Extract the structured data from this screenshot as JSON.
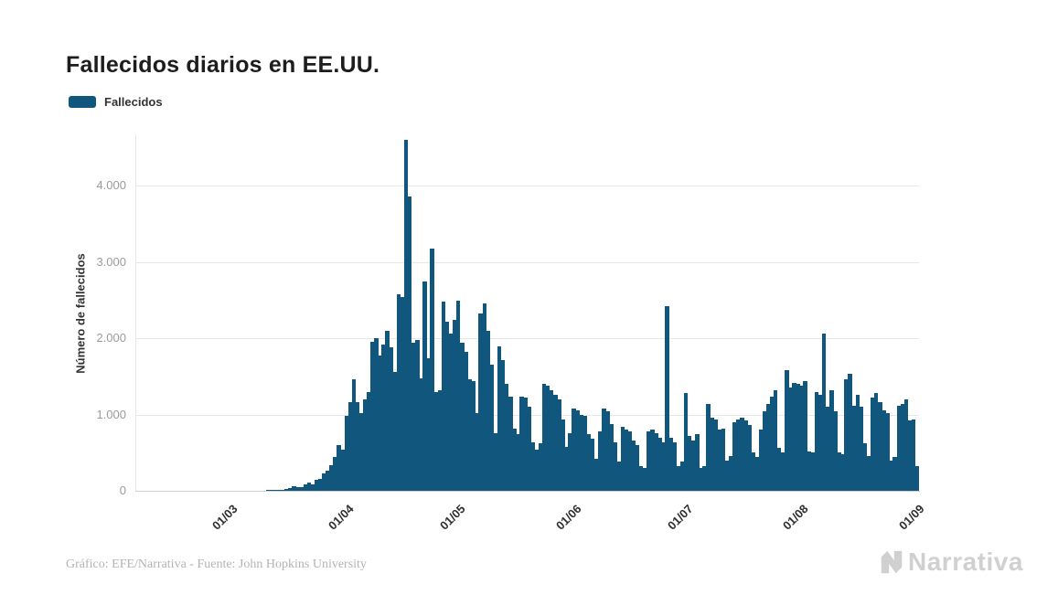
{
  "title": "Fallecidos diarios en EE.UU.",
  "legend": {
    "label": "Fallecidos",
    "color": "#11567D"
  },
  "y_axis": {
    "title": "Número de fallecidos",
    "ticks": [
      {
        "value": 0,
        "label": "0"
      },
      {
        "value": 1000,
        "label": "1.000"
      },
      {
        "value": 2000,
        "label": "2.000"
      },
      {
        "value": 3000,
        "label": "3.000"
      },
      {
        "value": 4000,
        "label": "4.000"
      }
    ]
  },
  "x_axis": {
    "ticks": [
      {
        "label": "01/03",
        "day_index": 25
      },
      {
        "label": "01/04",
        "day_index": 56
      },
      {
        "label": "01/05",
        "day_index": 86
      },
      {
        "label": "01/06",
        "day_index": 117
      },
      {
        "label": "01/07",
        "day_index": 147
      },
      {
        "label": "01/08",
        "day_index": 178
      },
      {
        "label": "01/09",
        "day_index": 209
      }
    ]
  },
  "footer": {
    "credit": "Gráfico: EFE/Narrativa - Fuente: John Hopkins University",
    "brand": "Narrativa"
  },
  "chart_data": {
    "type": "bar",
    "title": "Fallecidos diarios en EE.UU.",
    "series_name": "Fallecidos",
    "x_start": "05/02 (dd/mm), one bar per day",
    "x_end": "01/09",
    "ylabel": "Número de fallecidos",
    "ylim": [
      0,
      4600
    ],
    "grid": "horizontal",
    "legend_position": "top-left",
    "bar_color": "#11567D",
    "values": [
      0,
      0,
      0,
      0,
      0,
      0,
      0,
      0,
      0,
      1,
      1,
      1,
      1,
      1,
      1,
      1,
      1,
      1,
      2,
      2,
      2,
      2,
      2,
      3,
      4,
      3,
      4,
      4,
      3,
      4,
      5,
      4,
      5,
      6,
      5,
      8,
      7,
      11,
      16,
      18,
      23,
      41,
      57,
      49,
      46,
      80,
      111,
      90,
      145,
      160,
      227,
      267,
      330,
      440,
      600,
      540,
      980,
      1160,
      1460,
      1160,
      1020,
      1200,
      1300,
      1960,
      2000,
      1780,
      1920,
      2100,
      1880,
      1560,
      2580,
      2540,
      4600,
      3860,
      1940,
      1980,
      1480,
      2740,
      1740,
      3180,
      1300,
      1320,
      2480,
      2220,
      2060,
      2240,
      2500,
      1940,
      1820,
      1460,
      1440,
      1020,
      2330,
      2460,
      2100,
      1660,
      760,
      1900,
      1720,
      1400,
      1240,
      820,
      740,
      1240,
      1220,
      1100,
      640,
      540,
      620,
      1400,
      1380,
      1320,
      1260,
      1200,
      940,
      580,
      760,
      1080,
      1060,
      1000,
      980,
      740,
      680,
      420,
      780,
      1080,
      1040,
      880,
      640,
      380,
      840,
      800,
      780,
      660,
      600,
      320,
      300,
      780,
      800,
      760,
      700,
      640,
      2420,
      700,
      640,
      320,
      380,
      1280,
      720,
      660,
      740,
      300,
      320,
      1140,
      960,
      940,
      800,
      810,
      400,
      460,
      900,
      940,
      960,
      920,
      860,
      500,
      440,
      800,
      1040,
      1140,
      1240,
      1320,
      560,
      500,
      1580,
      1360,
      1420,
      1400,
      1380,
      1440,
      520,
      500,
      1300,
      1260,
      2060,
      1100,
      1320,
      1040,
      500,
      480,
      1460,
      1540,
      1120,
      1260,
      1100,
      620,
      460,
      1220,
      1280,
      1160,
      1050,
      1020,
      400,
      440,
      1120,
      1140,
      1200,
      920,
      940,
      320
    ]
  }
}
